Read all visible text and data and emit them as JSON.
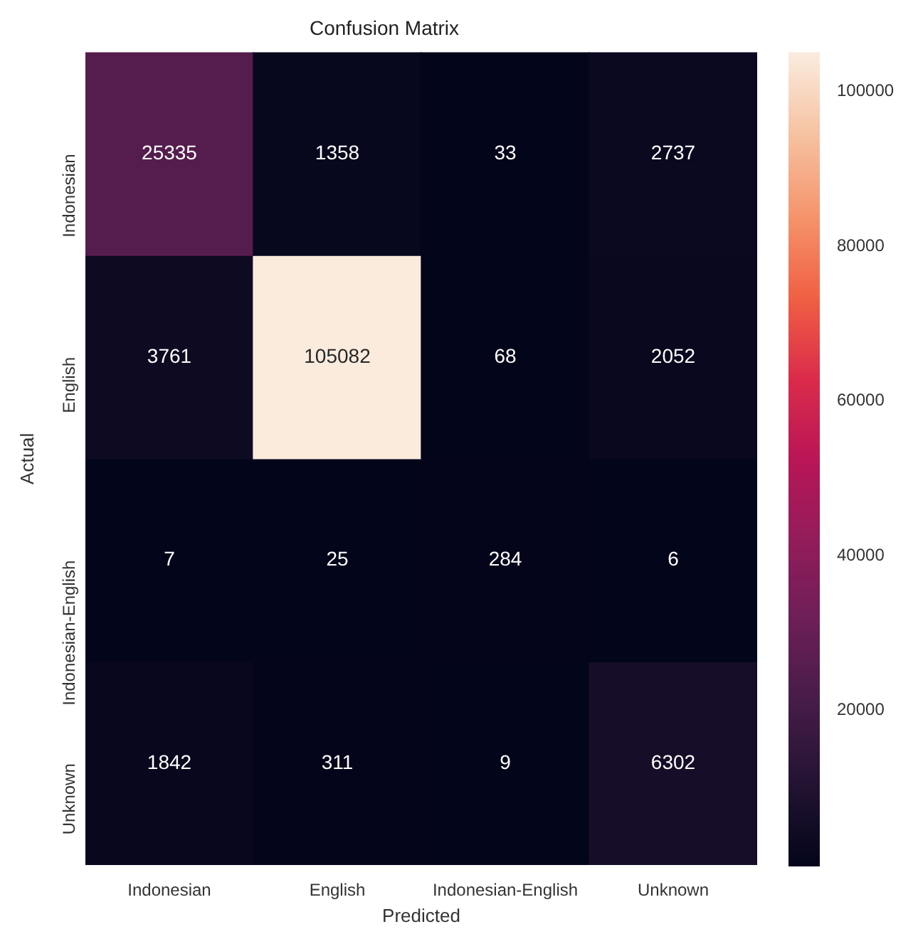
{
  "chart_data": {
    "type": "heatmap",
    "title": "Confusion Matrix",
    "xlabel": "Predicted",
    "ylabel": "Actual",
    "categories": [
      "Indonesian",
      "English",
      "Indonesian-English",
      "Unknown"
    ],
    "y_categories": [
      "Indonesian",
      "English",
      "Indonesian-English",
      "Unknown"
    ],
    "cells": [
      [
        25335,
        1358,
        33,
        2737
      ],
      [
        3761,
        105082,
        68,
        2052
      ],
      [
        7,
        25,
        284,
        6
      ],
      [
        1842,
        311,
        9,
        6302
      ]
    ],
    "clim": [
      6,
      105082
    ],
    "cticks": [
      20000,
      40000,
      60000,
      80000,
      100000
    ],
    "data_labels": true
  }
}
